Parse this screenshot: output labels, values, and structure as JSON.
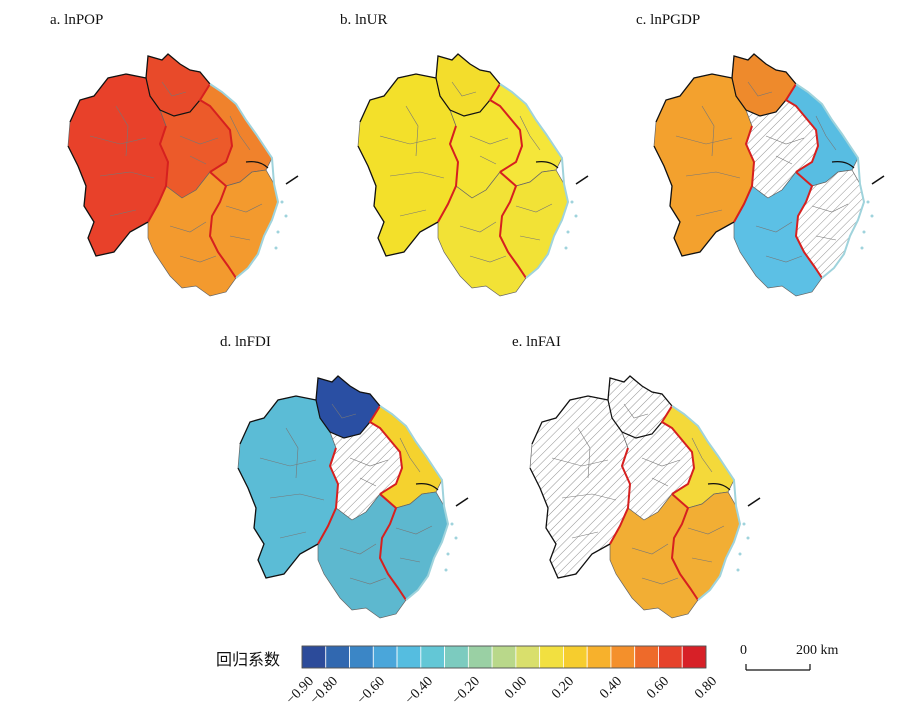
{
  "panels": [
    {
      "id": "a",
      "title": "a. lnPOP",
      "colors": {
        "west": "#e8412a",
        "mid": "#ec5a2a",
        "east": "#f0822c",
        "south": "#f39a2e",
        "north": "#e84a2a"
      },
      "hatch": []
    },
    {
      "id": "b",
      "title": "b. lnUR",
      "colors": {
        "west": "#f3e02a",
        "mid": "#f4e432",
        "east": "#f5e63a",
        "south": "#f2e236",
        "north": "#f3dd2c"
      },
      "hatch": []
    },
    {
      "id": "c",
      "title": "c. lnPGDP",
      "colors": {
        "west": "#f3a12e",
        "mid": "#ffffff",
        "east": "#58bde2",
        "south": "#5cc0e5",
        "north": "#ee8a2c"
      },
      "hatch": [
        "mid",
        "southeast"
      ]
    },
    {
      "id": "d",
      "title": "d. lnFDI",
      "colors": {
        "west": "#5bbcd6",
        "mid": "#ffffff",
        "east": "#f5d22e",
        "south": "#5db8cf",
        "north": "#2a4fa3"
      },
      "hatch": [
        "mid"
      ]
    },
    {
      "id": "e",
      "title": "e. lnFAI",
      "colors": {
        "west": "#ffffff",
        "mid": "#ffffff",
        "east": "#f4d93a",
        "south": "#f2ae34",
        "north": "#ffffff"
      },
      "hatch": [
        "west",
        "mid",
        "north"
      ]
    }
  ],
  "legend": {
    "title": "回归系数",
    "ticks": [
      "−0.90",
      "−0.80",
      "−0.60",
      "−0.40",
      "−0.20",
      "0.00",
      "0.20",
      "0.40",
      "0.60",
      "0.80"
    ],
    "tick_values": [
      -0.9,
      -0.8,
      -0.6,
      -0.4,
      -0.2,
      0.0,
      0.2,
      0.4,
      0.6,
      0.8
    ],
    "range": [
      -0.9,
      0.8
    ],
    "colors": [
      "#2c4b9a",
      "#3168b0",
      "#3b86c6",
      "#4aa6da",
      "#55bde0",
      "#63c7d6",
      "#7ccbbf",
      "#9ad0a4",
      "#b9d88a",
      "#d9df6c",
      "#f2e040",
      "#f6cd2e",
      "#f7b12c",
      "#f4902b",
      "#ee6a2a",
      "#e6412a",
      "#d72027"
    ]
  },
  "scale": {
    "zero": "0",
    "distance": "200 km"
  }
}
